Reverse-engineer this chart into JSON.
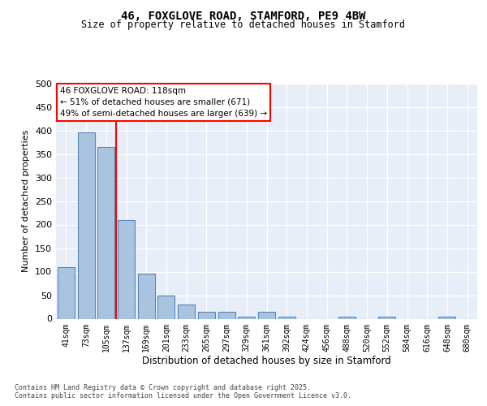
{
  "title_line1": "46, FOXGLOVE ROAD, STAMFORD, PE9 4BW",
  "title_line2": "Size of property relative to detached houses in Stamford",
  "xlabel": "Distribution of detached houses by size in Stamford",
  "ylabel": "Number of detached properties",
  "categories": [
    "41sqm",
    "73sqm",
    "105sqm",
    "137sqm",
    "169sqm",
    "201sqm",
    "233sqm",
    "265sqm",
    "297sqm",
    "329sqm",
    "361sqm",
    "392sqm",
    "424sqm",
    "456sqm",
    "488sqm",
    "520sqm",
    "552sqm",
    "584sqm",
    "616sqm",
    "648sqm",
    "680sqm"
  ],
  "values": [
    110,
    395,
    365,
    210,
    95,
    50,
    30,
    15,
    15,
    5,
    15,
    5,
    0,
    0,
    5,
    0,
    5,
    0,
    0,
    5,
    0
  ],
  "bar_color": "#aac4e0",
  "bar_edge_color": "#5588bb",
  "vline_x": 2.5,
  "vline_color": "red",
  "annotation_text": "46 FOXGLOVE ROAD: 118sqm\n← 51% of detached houses are smaller (671)\n49% of semi-detached houses are larger (639) →",
  "annotation_box_color": "white",
  "annotation_box_edge": "red",
  "ylim": [
    0,
    500
  ],
  "yticks": [
    0,
    50,
    100,
    150,
    200,
    250,
    300,
    350,
    400,
    450,
    500
  ],
  "bg_color": "#e8eef8",
  "footer_line1": "Contains HM Land Registry data © Crown copyright and database right 2025.",
  "footer_line2": "Contains public sector information licensed under the Open Government Licence v3.0."
}
